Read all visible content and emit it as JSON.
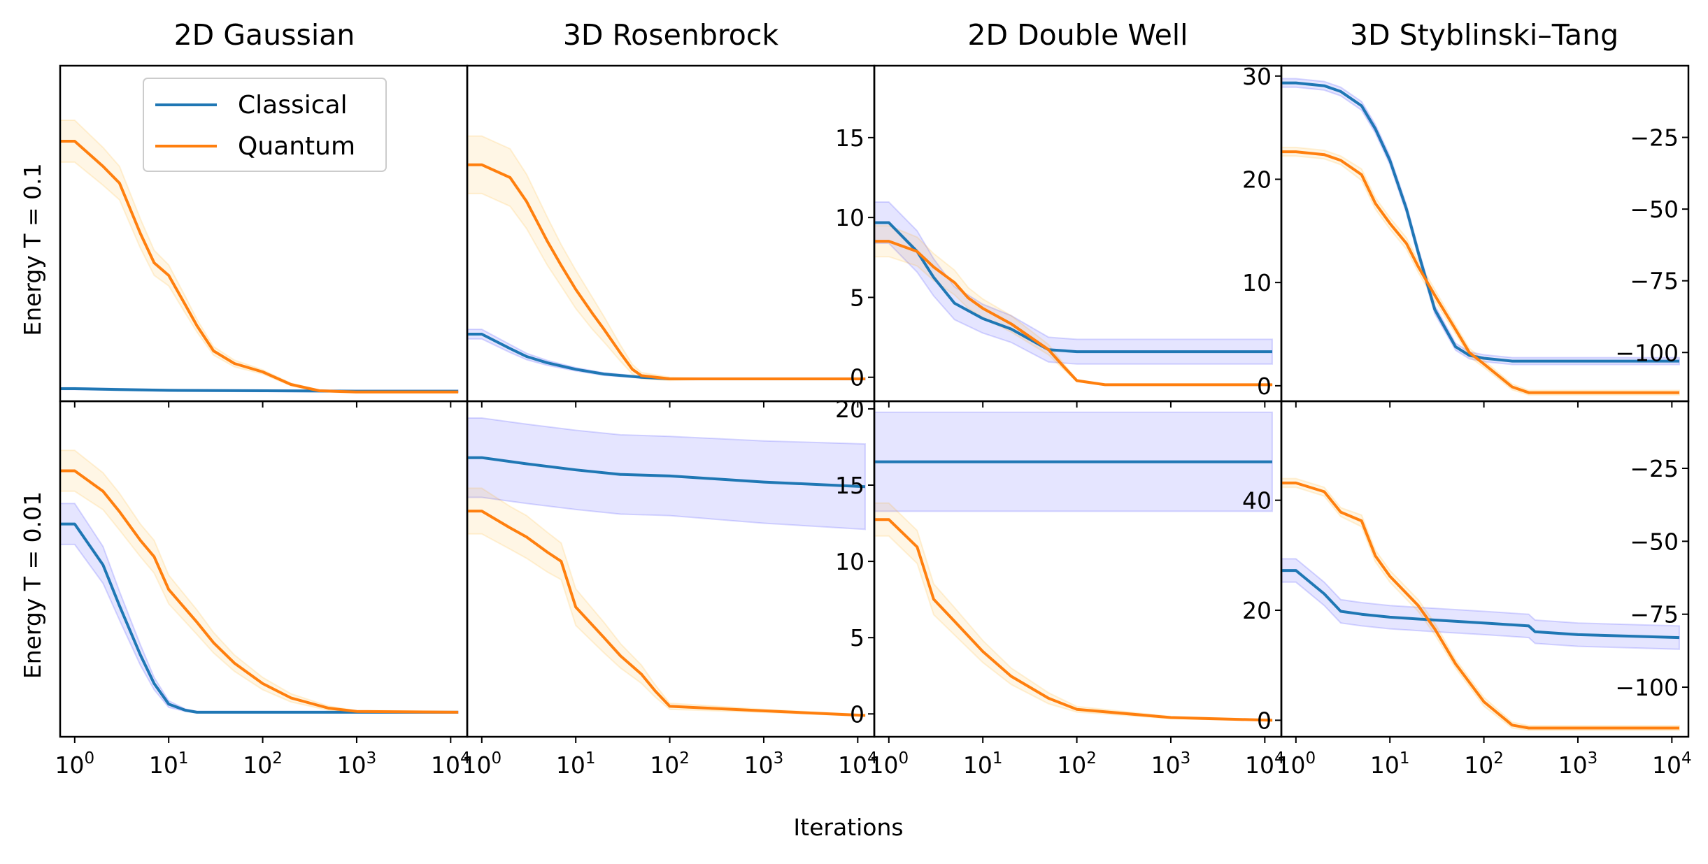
{
  "colors": {
    "classical": "#1f77b4",
    "quantum": "#ff7f0e",
    "classical_band": "#0000ff",
    "quantum_band": "#ffa500"
  },
  "figure": {
    "xlabel": "Iterations",
    "row_labels": [
      "Energy T = 0.1",
      "Energy T = 0.01"
    ],
    "column_titles": [
      "2D Gaussian",
      "3D Rosenbrock",
      "2D Double Well",
      "3D Styblinski–Tang"
    ]
  },
  "legend": {
    "placement": "top-left of first panel",
    "entries": [
      {
        "label": "Classical",
        "color": "#1f77b4"
      },
      {
        "label": "Quantum",
        "color": "#ff7f0e"
      }
    ]
  },
  "x_axis": {
    "scale": "log",
    "xlim": [
      0.7,
      15000
    ],
    "ticks": [
      1,
      10,
      100,
      1000,
      10000
    ],
    "tick_labels": [
      {
        "base": "10",
        "exp": "0"
      },
      {
        "base": "10",
        "exp": "1"
      },
      {
        "base": "10",
        "exp": "2"
      },
      {
        "base": "10",
        "exp": "3"
      },
      {
        "base": "10",
        "exp": "4"
      }
    ]
  },
  "chart_data": [
    {
      "type": "line",
      "row": 0,
      "col": 0,
      "title": "2D Gaussian",
      "ylabel": "Energy T = 0.1",
      "xscale": "log",
      "ylim": [
        -2.6,
        5.4
      ],
      "yticks": [],
      "ytick_labels": [],
      "series": [
        {
          "name": "Classical",
          "color": "#1f77b4",
          "x": [
            0.7,
            1,
            3,
            10,
            100,
            1000,
            12000
          ],
          "y": [
            -2.3,
            -2.3,
            -2.32,
            -2.34,
            -2.35,
            -2.36,
            -2.36
          ],
          "band": [
            0.02,
            0.02,
            0.02,
            0.02,
            0.02,
            0.02,
            0.02
          ]
        },
        {
          "name": "Quantum",
          "color": "#ff7f0e",
          "x": [
            0.7,
            1,
            2,
            3,
            5,
            7,
            10,
            15,
            20,
            30,
            50,
            100,
            200,
            400,
            1000,
            12000
          ],
          "y": [
            3.6,
            3.6,
            3.0,
            2.6,
            1.4,
            0.7,
            0.4,
            -0.3,
            -0.8,
            -1.4,
            -1.7,
            -1.9,
            -2.2,
            -2.35,
            -2.38,
            -2.38
          ],
          "band": [
            0.5,
            0.5,
            0.45,
            0.4,
            0.35,
            0.3,
            0.25,
            0.2,
            0.15,
            0.1,
            0.08,
            0.05,
            0.03,
            0.02,
            0.02,
            0.02
          ]
        }
      ]
    },
    {
      "type": "line",
      "row": 0,
      "col": 1,
      "title": "3D Rosenbrock",
      "ylabel": "",
      "xscale": "log",
      "ylim": [
        -1.5,
        19.5
      ],
      "yticks": [
        0,
        5,
        10,
        15
      ],
      "ytick_labels": [
        "0",
        "5",
        "10",
        "15"
      ],
      "series": [
        {
          "name": "Classical",
          "color": "#1f77b4",
          "x": [
            0.7,
            1,
            2,
            3,
            5,
            10,
            20,
            50,
            100,
            1000,
            12000
          ],
          "y": [
            2.7,
            2.7,
            1.8,
            1.3,
            0.9,
            0.5,
            0.2,
            0.0,
            -0.1,
            -0.1,
            -0.1
          ],
          "band": [
            0.3,
            0.3,
            0.25,
            0.2,
            0.15,
            0.1,
            0.08,
            0.05,
            0.05,
            0.05,
            0.05
          ]
        },
        {
          "name": "Quantum",
          "color": "#ff7f0e",
          "x": [
            0.7,
            1,
            2,
            3,
            5,
            7,
            10,
            15,
            20,
            30,
            40,
            50,
            100,
            200,
            1000,
            12000
          ],
          "y": [
            13.3,
            13.3,
            12.5,
            11.0,
            8.5,
            7.0,
            5.5,
            4.0,
            3.0,
            1.5,
            0.5,
            0.1,
            -0.1,
            -0.1,
            -0.1,
            -0.1
          ],
          "band": [
            1.8,
            1.8,
            1.8,
            1.7,
            1.5,
            1.3,
            1.2,
            1.0,
            0.8,
            0.5,
            0.3,
            0.2,
            0.1,
            0.05,
            0.05,
            0.05
          ]
        }
      ]
    },
    {
      "type": "line",
      "row": 0,
      "col": 2,
      "title": "2D Double Well",
      "ylabel": "",
      "xscale": "log",
      "ylim": [
        -1.5,
        31
      ],
      "yticks": [
        0,
        10,
        20,
        30
      ],
      "ytick_labels": [
        "0",
        "10",
        "20",
        "30"
      ],
      "series": [
        {
          "name": "Classical",
          "color": "#1f77b4",
          "x": [
            0.7,
            1,
            2,
            3,
            5,
            10,
            20,
            50,
            100,
            1000,
            12000
          ],
          "y": [
            15.8,
            15.8,
            13.0,
            10.5,
            8.0,
            6.5,
            5.5,
            3.5,
            3.3,
            3.3,
            3.3
          ],
          "band": [
            2.0,
            2.0,
            2.0,
            1.8,
            1.6,
            1.4,
            1.3,
            1.2,
            1.2,
            1.2,
            1.2
          ]
        },
        {
          "name": "Quantum",
          "color": "#ff7f0e",
          "x": [
            0.7,
            1,
            2,
            3,
            5,
            7,
            10,
            20,
            50,
            70,
            100,
            200,
            1000,
            12000
          ],
          "y": [
            14.0,
            14.0,
            13.0,
            11.5,
            10.0,
            8.5,
            7.5,
            6.0,
            3.5,
            2.0,
            0.5,
            0.1,
            0.1,
            0.1
          ],
          "band": [
            1.5,
            1.5,
            1.4,
            1.3,
            1.2,
            1.0,
            0.9,
            0.8,
            0.5,
            0.3,
            0.1,
            0.05,
            0.05,
            0.05
          ]
        }
      ]
    },
    {
      "type": "line",
      "row": 0,
      "col": 3,
      "title": "3D Styblinski–Tang",
      "ylabel": "",
      "xscale": "log",
      "ylim": [
        -117,
        0
      ],
      "yticks": [
        -25,
        -50,
        -75,
        -100
      ],
      "ytick_labels": [
        "−25",
        "−50",
        "−75",
        "−100"
      ],
      "series": [
        {
          "name": "Classical",
          "color": "#1f77b4",
          "x": [
            0.7,
            1,
            2,
            3,
            5,
            7,
            10,
            15,
            20,
            30,
            50,
            70,
            100,
            200,
            1000,
            12000
          ],
          "y": [
            -6,
            -6,
            -7,
            -9,
            -14,
            -22,
            -33,
            -50,
            -65,
            -85,
            -98,
            -101,
            -102,
            -103,
            -103,
            -103
          ],
          "band": [
            1.5,
            1.5,
            1.5,
            1.5,
            1.5,
            1.5,
            1.5,
            1.5,
            1.5,
            1.5,
            1.2,
            1.2,
            1.2,
            1.2,
            1.2,
            1.2
          ]
        },
        {
          "name": "Quantum",
          "color": "#ff7f0e",
          "x": [
            0.7,
            1,
            2,
            3,
            5,
            7,
            10,
            15,
            20,
            30,
            50,
            70,
            100,
            200,
            300,
            1000,
            12000
          ],
          "y": [
            -30,
            -30,
            -31,
            -33,
            -38,
            -48,
            -55,
            -62,
            -70,
            -80,
            -92,
            -100,
            -104,
            -112,
            -114,
            -114,
            -114
          ],
          "band": [
            1.5,
            1.5,
            1.5,
            1.5,
            2.0,
            2.0,
            2.0,
            2.0,
            2.0,
            2.0,
            1.5,
            1.5,
            1.2,
            1.0,
            0.8,
            0.8,
            0.8
          ]
        }
      ]
    },
    {
      "type": "line",
      "row": 1,
      "col": 0,
      "title": "",
      "ylabel": "Energy T = 0.01",
      "xscale": "log",
      "ylim": [
        -0.6,
        7.6
      ],
      "yticks": [],
      "ytick_labels": [],
      "series": [
        {
          "name": "Classical",
          "color": "#1f77b4",
          "x": [
            0.7,
            1,
            2,
            3,
            5,
            7,
            10,
            15,
            20,
            30,
            100,
            1000,
            12000
          ],
          "y": [
            4.6,
            4.6,
            3.6,
            2.6,
            1.4,
            0.7,
            0.2,
            0.05,
            0.0,
            0.0,
            0.0,
            0.0,
            0.0
          ],
          "band": [
            0.5,
            0.5,
            0.45,
            0.35,
            0.25,
            0.15,
            0.08,
            0.03,
            0.02,
            0.02,
            0.02,
            0.02,
            0.02
          ]
        },
        {
          "name": "Quantum",
          "color": "#ff7f0e",
          "x": [
            0.7,
            1,
            2,
            3,
            5,
            7,
            10,
            20,
            30,
            50,
            100,
            200,
            500,
            1000,
            12000
          ],
          "y": [
            5.9,
            5.9,
            5.4,
            4.9,
            4.2,
            3.8,
            3.0,
            2.2,
            1.7,
            1.2,
            0.7,
            0.35,
            0.1,
            0.02,
            0.0
          ],
          "band": [
            0.5,
            0.5,
            0.45,
            0.45,
            0.4,
            0.4,
            0.35,
            0.3,
            0.25,
            0.2,
            0.15,
            0.1,
            0.05,
            0.02,
            0.02
          ]
        }
      ]
    },
    {
      "type": "line",
      "row": 1,
      "col": 1,
      "title": "",
      "ylabel": "",
      "xscale": "log",
      "ylim": [
        -1.5,
        20.5
      ],
      "yticks": [
        0,
        5,
        10,
        15,
        20
      ],
      "ytick_labels": [
        "0",
        "5",
        "10",
        "15",
        "20"
      ],
      "series": [
        {
          "name": "Classical",
          "color": "#1f77b4",
          "x": [
            0.7,
            1,
            3,
            10,
            30,
            100,
            1000,
            12000
          ],
          "y": [
            16.8,
            16.8,
            16.4,
            16.0,
            15.7,
            15.6,
            15.2,
            14.9
          ],
          "band": [
            2.6,
            2.6,
            2.6,
            2.6,
            2.6,
            2.6,
            2.7,
            2.8
          ]
        },
        {
          "name": "Quantum",
          "color": "#ff7f0e",
          "x": [
            0.7,
            1,
            2,
            3,
            5,
            7,
            10,
            20,
            30,
            50,
            70,
            100,
            1000,
            12000
          ],
          "y": [
            13.3,
            13.3,
            12.2,
            11.6,
            10.6,
            10.0,
            7.0,
            5.0,
            3.8,
            2.6,
            1.5,
            0.5,
            0.2,
            -0.1
          ],
          "band": [
            1.5,
            1.5,
            1.4,
            1.4,
            1.3,
            1.2,
            1.2,
            1.0,
            0.8,
            0.6,
            0.4,
            0.2,
            0.1,
            0.05
          ]
        }
      ]
    },
    {
      "type": "line",
      "row": 1,
      "col": 2,
      "title": "",
      "ylabel": "",
      "xscale": "log",
      "ylim": [
        -3,
        58
      ],
      "yticks": [
        0,
        20,
        40
      ],
      "ytick_labels": [
        "0",
        "20",
        "40"
      ],
      "series": [
        {
          "name": "Classical",
          "color": "#1f77b4",
          "x": [
            0.7,
            1,
            10,
            100,
            1000,
            12000
          ],
          "y": [
            47,
            47,
            47,
            47,
            47,
            47
          ],
          "band": [
            9,
            9,
            9,
            9,
            9,
            9
          ]
        },
        {
          "name": "Quantum",
          "color": "#ff7f0e",
          "x": [
            0.7,
            1,
            2,
            3,
            5,
            10,
            20,
            50,
            100,
            1000,
            12000
          ],
          "y": [
            36.5,
            36.5,
            31.5,
            22.0,
            18.0,
            12.5,
            8.0,
            4.0,
            2.0,
            0.5,
            0.0
          ],
          "band": [
            3.0,
            3.0,
            3.0,
            2.8,
            2.5,
            2.0,
            1.5,
            1.0,
            0.5,
            0.2,
            0.1
          ]
        }
      ]
    },
    {
      "type": "line",
      "row": 1,
      "col": 3,
      "title": "",
      "ylabel": "",
      "xscale": "log",
      "ylim": [
        -117,
        -2
      ],
      "yticks": [
        -25,
        -50,
        -75,
        -100
      ],
      "ytick_labels": [
        "−25",
        "−50",
        "−75",
        "−100"
      ],
      "series": [
        {
          "name": "Classical",
          "color": "#1f77b4",
          "x": [
            0.7,
            1,
            2,
            3,
            5,
            10,
            30,
            100,
            300,
            350,
            1000,
            12000
          ],
          "y": [
            -60,
            -60,
            -68,
            -74,
            -75,
            -76,
            -77,
            -78,
            -79,
            -81,
            -82,
            -83
          ],
          "band": [
            4,
            4,
            4,
            4,
            4,
            4,
            4,
            4,
            4,
            4,
            4,
            4
          ]
        },
        {
          "name": "Quantum",
          "color": "#ff7f0e",
          "x": [
            0.7,
            1,
            2,
            3,
            5,
            7,
            10,
            20,
            30,
            50,
            100,
            200,
            300,
            1000,
            12000
          ],
          "y": [
            -30,
            -30,
            -33,
            -40,
            -43,
            -55,
            -62,
            -72,
            -80,
            -92,
            -105,
            -113,
            -114,
            -114,
            -114
          ],
          "band": [
            1.5,
            1.5,
            1.5,
            1.5,
            2.0,
            2.0,
            2.0,
            2.0,
            2.0,
            1.5,
            1.5,
            1.0,
            0.8,
            0.8,
            0.8
          ]
        }
      ]
    }
  ]
}
